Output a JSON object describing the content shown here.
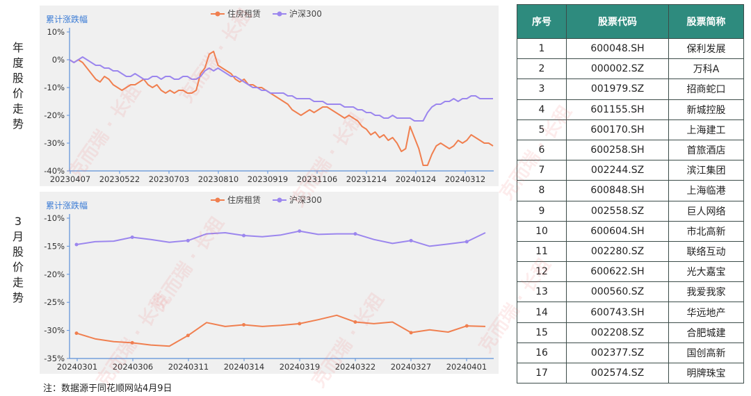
{
  "side_labels": {
    "annual": "年度股价走势",
    "march": "3月股价走势"
  },
  "watermark": "克而瑞 · 长租",
  "footnote": "注：数据源于同花顺网站4月9日",
  "colors": {
    "housing": "#f07f4f",
    "hs300": "#9b86ee",
    "table_header": "#2e8b7e"
  },
  "chart_data": [
    {
      "type": "line",
      "title": "累计涨跌幅",
      "ylim": [
        -40,
        10
      ],
      "yticks": [
        10,
        0,
        -10,
        -20,
        -30,
        -40
      ],
      "ytick_labels": [
        "10%",
        "0%",
        "-10%",
        "-20%",
        "-30%",
        "-40%"
      ],
      "xtick_labels": [
        "20230407",
        "20230522",
        "20230703",
        "20230810",
        "20230919",
        "20231106",
        "20231214",
        "20240124",
        "20240312"
      ],
      "grid": false,
      "legend_position": "top",
      "series": [
        {
          "name": "住房租赁",
          "values": [
            0,
            -1,
            0,
            -1,
            -3,
            -5,
            -7,
            -8,
            -6,
            -7,
            -9,
            -10,
            -11,
            -10,
            -9,
            -9,
            -8,
            -7,
            -9,
            -10,
            -9,
            -11,
            -12,
            -11,
            -12,
            -11,
            -11,
            -12,
            -12,
            -11,
            -5,
            -3,
            2,
            3,
            -2,
            -3,
            -4,
            -5,
            -7,
            -8,
            -7,
            -9,
            -9,
            -10,
            -10,
            -11,
            -12,
            -13,
            -14,
            -15,
            -16,
            -18,
            -19,
            -20,
            -19,
            -18,
            -19,
            -18,
            -17,
            -17,
            -18,
            -19,
            -20,
            -21,
            -20,
            -21,
            -22,
            -24,
            -25,
            -27,
            -26,
            -28,
            -27,
            -29,
            -28,
            -30,
            -33,
            -32,
            -24,
            -28,
            -32,
            -38,
            -38,
            -34,
            -31,
            -30,
            -31,
            -32,
            -31,
            -29,
            -30,
            -29,
            -27,
            -28,
            -29,
            -30,
            -30,
            -31
          ]
        },
        {
          "name": "沪深300",
          "values": [
            0,
            -1,
            0,
            1,
            0,
            -1,
            -2,
            -2,
            -3,
            -3,
            -4,
            -4,
            -5,
            -6,
            -6,
            -5,
            -6,
            -7,
            -7,
            -6,
            -6,
            -7,
            -6,
            -6,
            -7,
            -7,
            -6,
            -6,
            -7,
            -7,
            -6,
            -4,
            -3,
            -4,
            -3,
            -4,
            -5,
            -6,
            -6,
            -7,
            -8,
            -9,
            -10,
            -10,
            -11,
            -11,
            -12,
            -12,
            -12,
            -12,
            -13,
            -13,
            -14,
            -14,
            -14,
            -14,
            -15,
            -15,
            -15,
            -16,
            -16,
            -16,
            -16,
            -17,
            -17,
            -17,
            -18,
            -18,
            -19,
            -19,
            -20,
            -20,
            -21,
            -21,
            -20,
            -21,
            -21,
            -21,
            -21,
            -22,
            -22,
            -22,
            -19,
            -17,
            -16,
            -16,
            -15,
            -15,
            -14,
            -15,
            -14,
            -14,
            -13,
            -13,
            -14,
            -14,
            -14,
            -14
          ]
        }
      ]
    },
    {
      "type": "line",
      "title": "累计涨跌幅",
      "ylim": [
        -35,
        -10
      ],
      "yticks": [
        -10,
        -15,
        -20,
        -25,
        -30,
        -35
      ],
      "ytick_labels": [
        "-10%",
        "-15%",
        "-20%",
        "-25%",
        "-30%",
        "-35%"
      ],
      "xtick_labels": [
        "20240301",
        "20240306",
        "20240311",
        "20240314",
        "20240319",
        "20240322",
        "20240327",
        "20240401"
      ],
      "grid": false,
      "legend_position": "top",
      "series": [
        {
          "name": "住房租赁",
          "values": [
            -30.5,
            -31.5,
            -32.0,
            -32.2,
            -32.6,
            -32.8,
            -30.9,
            -28.6,
            -29.3,
            -29.0,
            -29.3,
            -29.1,
            -28.8,
            -28.1,
            -27.3,
            -28.5,
            -28.8,
            -28.5,
            -30.4,
            -29.9,
            -30.3,
            -29.2,
            -29.3
          ]
        },
        {
          "name": "沪深300",
          "values": [
            -14.7,
            -14.2,
            -14.1,
            -13.4,
            -13.8,
            -14.3,
            -14.0,
            -12.8,
            -12.6,
            -13.1,
            -13.3,
            -13.0,
            -12.3,
            -12.9,
            -12.8,
            -12.8,
            -13.8,
            -14.5,
            -14.0,
            -15.0,
            -14.6,
            -14.2,
            -12.6
          ]
        }
      ]
    }
  ],
  "table": {
    "headers": [
      "序号",
      "股票代码",
      "股票简称"
    ],
    "rows": [
      [
        "1",
        "600048.SH",
        "保利发展"
      ],
      [
        "2",
        "000002.SZ",
        "万科A"
      ],
      [
        "3",
        "001979.SZ",
        "招商蛇口"
      ],
      [
        "4",
        "601155.SH",
        "新城控股"
      ],
      [
        "5",
        "600170.SH",
        "上海建工"
      ],
      [
        "6",
        "600258.SH",
        "首旅酒店"
      ],
      [
        "7",
        "002244.SZ",
        "滨江集团"
      ],
      [
        "8",
        "600848.SH",
        "上海临港"
      ],
      [
        "9",
        "002558.SZ",
        "巨人网络"
      ],
      [
        "10",
        "600604.SH",
        "市北高新"
      ],
      [
        "11",
        "002280.SZ",
        "联络互动"
      ],
      [
        "12",
        "600622.SH",
        "光大嘉宝"
      ],
      [
        "13",
        "000560.SZ",
        "我爱我家"
      ],
      [
        "14",
        "600743.SH",
        "华远地产"
      ],
      [
        "15",
        "002208.SZ",
        "合肥城建"
      ],
      [
        "16",
        "002377.SZ",
        "国创高新"
      ],
      [
        "17",
        "002574.SZ",
        "明牌珠宝"
      ]
    ]
  }
}
